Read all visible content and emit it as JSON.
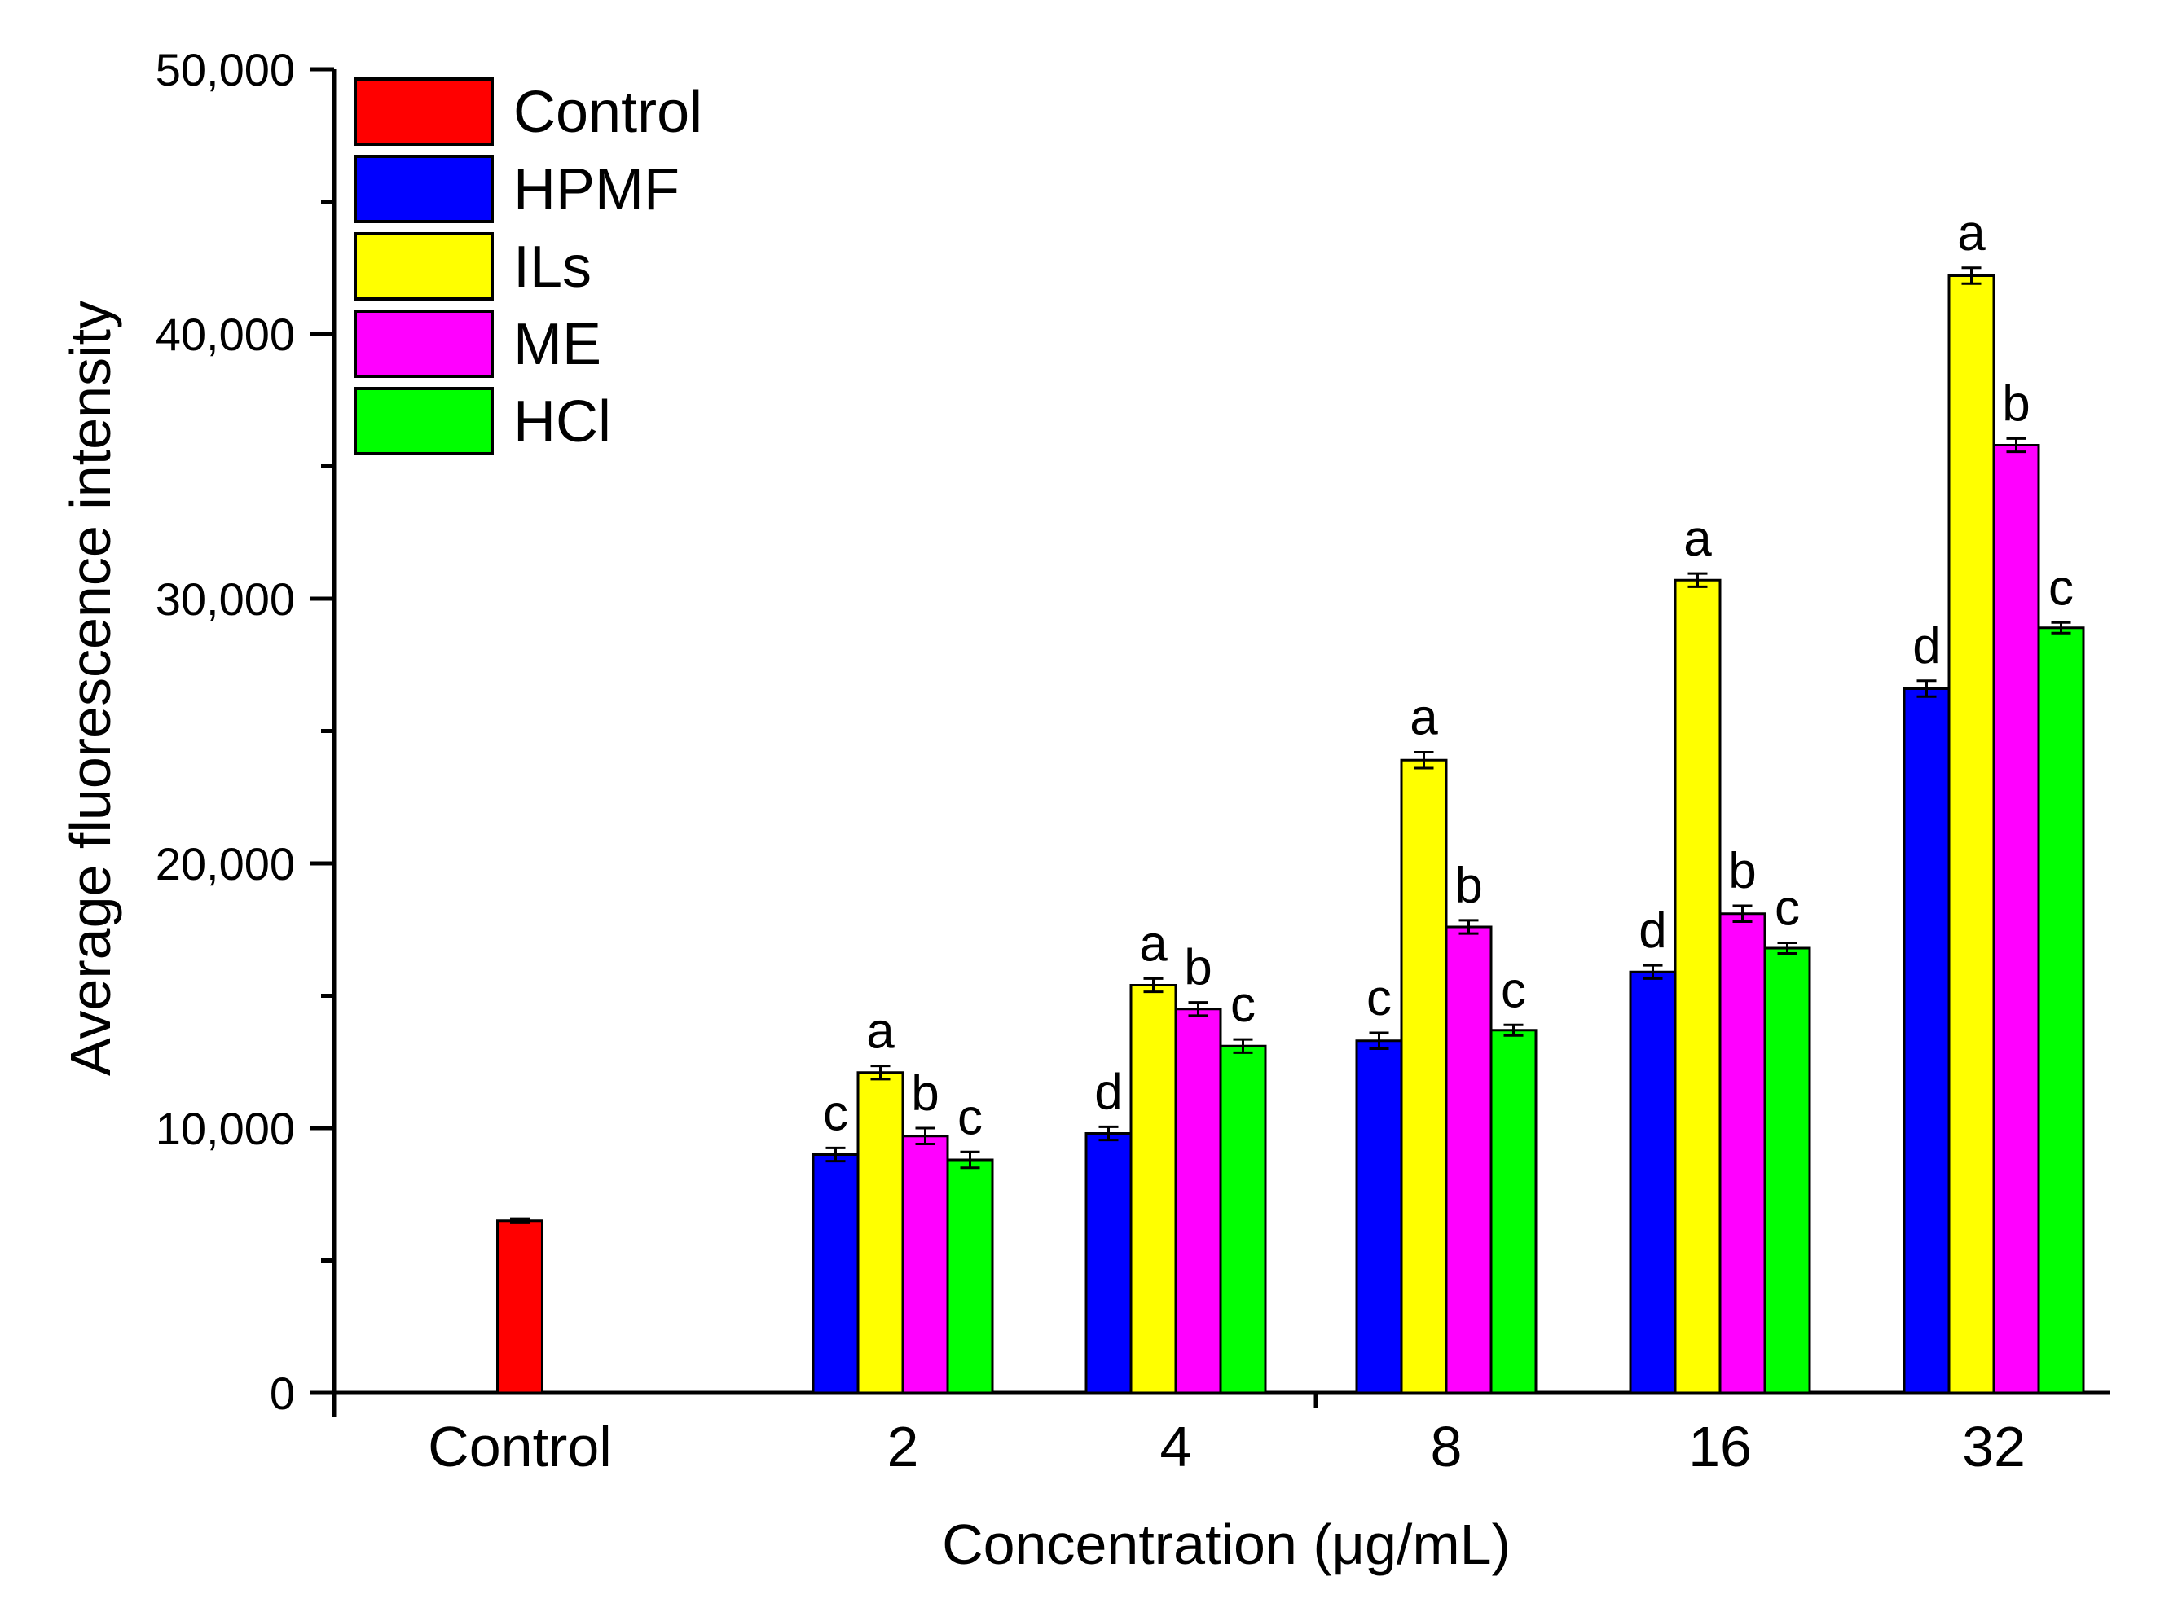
{
  "chart_data": {
    "type": "bar",
    "xlabel": "Concentration (μg/mL)",
    "ylabel": "Average fluorescence intensity",
    "ylim": [
      0,
      50000
    ],
    "yticks": [
      0,
      10000,
      20000,
      30000,
      40000,
      50000
    ],
    "ytick_labels": [
      "0",
      "10,000",
      "20,000",
      "30,000",
      "40,000",
      "50,000"
    ],
    "categories": [
      "Control",
      "2",
      "4",
      "8",
      "16",
      "32"
    ],
    "legend_position": "top-left",
    "series": [
      {
        "name": "Control",
        "color": "#ff0000",
        "values": [
          6500,
          null,
          null,
          null,
          null,
          null
        ],
        "errors": [
          80,
          null,
          null,
          null,
          null,
          null
        ],
        "labels": [
          "",
          "",
          "",
          "",
          "",
          ""
        ]
      },
      {
        "name": "HPMF",
        "color": "#0000ff",
        "values": [
          null,
          9000,
          9800,
          13300,
          15900,
          26600
        ],
        "errors": [
          null,
          250,
          250,
          300,
          250,
          300
        ],
        "labels": [
          "",
          "c",
          "d",
          "c",
          "d",
          "d"
        ]
      },
      {
        "name": "ILs",
        "color": "#ffff00",
        "values": [
          null,
          12100,
          15400,
          23900,
          30700,
          42200
        ],
        "errors": [
          null,
          250,
          250,
          300,
          250,
          300
        ],
        "labels": [
          "",
          "a",
          "a",
          "a",
          "a",
          "a"
        ]
      },
      {
        "name": "ME",
        "color": "#ff00ff",
        "values": [
          null,
          9700,
          14500,
          17600,
          18100,
          35800
        ],
        "errors": [
          null,
          300,
          250,
          250,
          300,
          250
        ],
        "labels": [
          "",
          "b",
          "b",
          "b",
          "b",
          "b"
        ]
      },
      {
        "name": "HCl",
        "color": "#00ff00",
        "values": [
          null,
          8800,
          13100,
          13700,
          16800,
          28900
        ],
        "errors": [
          null,
          300,
          250,
          200,
          200,
          200
        ],
        "labels": [
          "",
          "c",
          "c",
          "c",
          "c",
          "c"
        ]
      }
    ]
  }
}
